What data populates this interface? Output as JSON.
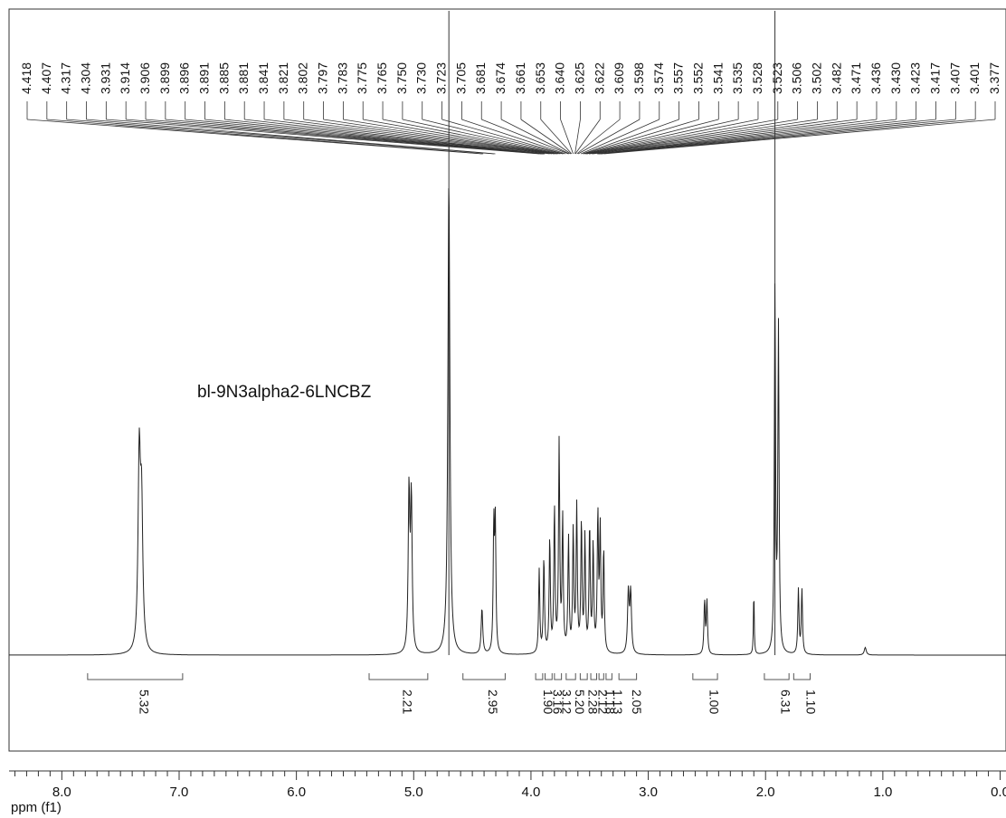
{
  "chart_data": {
    "type": "line",
    "sample_label": "bl-9N3alpha2-6LNCBZ",
    "xlabel": "ppm (f1)",
    "xlim": [
      8.45,
      -0.05
    ],
    "x_ticks": [
      "8.0",
      "7.0",
      "6.0",
      "5.0",
      "4.0",
      "3.0",
      "2.0",
      "1.0",
      "0.0"
    ],
    "peak_labels": [
      "4.418",
      "4.407",
      "4.317",
      "4.304",
      "3.931",
      "3.914",
      "3.906",
      "3.899",
      "3.896",
      "3.891",
      "3.885",
      "3.881",
      "3.841",
      "3.821",
      "3.802",
      "3.797",
      "3.783",
      "3.775",
      "3.765",
      "3.750",
      "3.730",
      "3.723",
      "3.705",
      "3.681",
      "3.674",
      "3.661",
      "3.653",
      "3.640",
      "3.625",
      "3.622",
      "3.609",
      "3.598",
      "3.574",
      "3.557",
      "3.552",
      "3.541",
      "3.535",
      "3.528",
      "3.523",
      "3.506",
      "3.502",
      "3.482",
      "3.471",
      "3.436",
      "3.430",
      "3.423",
      "3.417",
      "3.407",
      "3.401",
      "3.377"
    ],
    "peaks": [
      {
        "ppm": 7.34,
        "height": 0.5,
        "width": 0.012
      },
      {
        "ppm": 7.32,
        "height": 0.36,
        "width": 0.012
      },
      {
        "ppm": 5.04,
        "height": 0.42,
        "width": 0.008
      },
      {
        "ppm": 5.02,
        "height": 0.4,
        "width": 0.008
      },
      {
        "ppm": 4.418,
        "height": 0.12,
        "width": 0.008
      },
      {
        "ppm": 4.317,
        "height": 0.33,
        "width": 0.006
      },
      {
        "ppm": 4.304,
        "height": 0.33,
        "width": 0.006
      },
      {
        "ppm": 3.93,
        "height": 0.22,
        "width": 0.006
      },
      {
        "ppm": 3.89,
        "height": 0.25,
        "width": 0.006
      },
      {
        "ppm": 3.84,
        "height": 0.3,
        "width": 0.006
      },
      {
        "ppm": 3.8,
        "height": 0.38,
        "width": 0.006
      },
      {
        "ppm": 3.76,
        "height": 0.55,
        "width": 0.006
      },
      {
        "ppm": 3.73,
        "height": 0.35,
        "width": 0.006
      },
      {
        "ppm": 3.68,
        "height": 0.3,
        "width": 0.006
      },
      {
        "ppm": 3.64,
        "height": 0.32,
        "width": 0.006
      },
      {
        "ppm": 3.61,
        "height": 0.38,
        "width": 0.006
      },
      {
        "ppm": 3.57,
        "height": 0.34,
        "width": 0.006
      },
      {
        "ppm": 3.54,
        "height": 0.3,
        "width": 0.006
      },
      {
        "ppm": 3.5,
        "height": 0.33,
        "width": 0.006
      },
      {
        "ppm": 3.47,
        "height": 0.28,
        "width": 0.006
      },
      {
        "ppm": 3.43,
        "height": 0.36,
        "width": 0.006
      },
      {
        "ppm": 3.41,
        "height": 0.32,
        "width": 0.006
      },
      {
        "ppm": 3.38,
        "height": 0.27,
        "width": 0.006
      },
      {
        "ppm": 3.17,
        "height": 0.16,
        "width": 0.008
      },
      {
        "ppm": 3.15,
        "height": 0.16,
        "width": 0.008
      },
      {
        "ppm": 2.52,
        "height": 0.14,
        "width": 0.006
      },
      {
        "ppm": 2.5,
        "height": 0.14,
        "width": 0.006
      },
      {
        "ppm": 2.1,
        "height": 0.17,
        "width": 0.004
      },
      {
        "ppm": 1.92,
        "height": 0.96,
        "width": 0.006
      },
      {
        "ppm": 1.89,
        "height": 0.85,
        "width": 0.006
      },
      {
        "ppm": 1.72,
        "height": 0.17,
        "width": 0.006
      },
      {
        "ppm": 1.69,
        "height": 0.17,
        "width": 0.006
      },
      {
        "ppm": 1.15,
        "height": 0.02,
        "width": 0.01
      },
      {
        "ppm": 4.7,
        "height": 1.25,
        "width": 0.01
      }
    ],
    "integrals": [
      {
        "from": 7.78,
        "to": 6.97,
        "label": "5.32"
      },
      {
        "from": 5.38,
        "to": 4.88,
        "label": "2.21"
      },
      {
        "from": 4.58,
        "to": 4.22,
        "label": "2.95"
      },
      {
        "from": 3.96,
        "to": 3.9,
        "label": "1.90"
      },
      {
        "from": 3.88,
        "to": 3.82,
        "label": "3.16"
      },
      {
        "from": 3.8,
        "to": 3.74,
        "label": "3.12"
      },
      {
        "from": 3.7,
        "to": 3.62,
        "label": "5.20"
      },
      {
        "from": 3.58,
        "to": 3.52,
        "label": "2.28"
      },
      {
        "from": 3.49,
        "to": 3.44,
        "label": "2.12"
      },
      {
        "from": 3.42,
        "to": 3.38,
        "label": "1.18"
      },
      {
        "from": 3.36,
        "to": 3.31,
        "label": "1.13"
      },
      {
        "from": 3.25,
        "to": 3.1,
        "label": "2.05"
      },
      {
        "from": 2.62,
        "to": 2.41,
        "label": "1.00"
      },
      {
        "from": 2.01,
        "to": 1.8,
        "label": "6.31"
      },
      {
        "from": 1.76,
        "to": 1.62,
        "label": "1.10"
      }
    ]
  }
}
